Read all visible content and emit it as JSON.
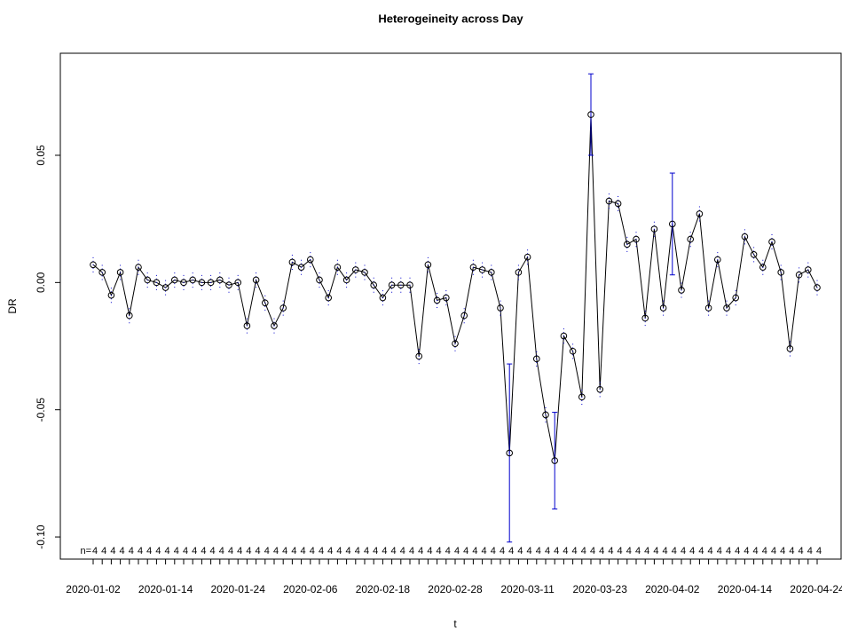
{
  "chart_data": {
    "type": "line",
    "title": "Heterogeineity across Day",
    "x_label": "t",
    "y_label": "DR",
    "categories": [
      "2020-01-02",
      null,
      null,
      null,
      null,
      null,
      null,
      null,
      "2020-01-14",
      null,
      null,
      null,
      null,
      null,
      null,
      null,
      "2020-01-24",
      null,
      null,
      null,
      null,
      null,
      null,
      null,
      "2020-02-06",
      null,
      null,
      null,
      null,
      null,
      null,
      null,
      "2020-02-18",
      null,
      null,
      null,
      null,
      null,
      null,
      null,
      "2020-02-28",
      null,
      null,
      null,
      null,
      null,
      null,
      null,
      "2020-03-11",
      null,
      null,
      null,
      null,
      null,
      null,
      null,
      "2020-03-23",
      null,
      null,
      null,
      null,
      null,
      null,
      null,
      "2020-04-02",
      null,
      null,
      null,
      null,
      null,
      null,
      null,
      "2020-04-14",
      null,
      null,
      null,
      null,
      null,
      null,
      null,
      "2020-04-24"
    ],
    "series": [
      {
        "name": "DR",
        "color": "#000000",
        "values": [
          0.007,
          0.004,
          -0.005,
          0.004,
          -0.013,
          0.006,
          0.001,
          0.0,
          -0.002,
          0.001,
          0.0,
          0.001,
          0.0,
          0.0,
          0.001,
          -0.001,
          0.0,
          -0.017,
          0.001,
          -0.008,
          -0.017,
          -0.01,
          0.008,
          0.006,
          0.009,
          0.001,
          -0.006,
          0.006,
          0.001,
          0.005,
          0.004,
          -0.001,
          -0.006,
          -0.001,
          -0.001,
          -0.001,
          -0.029,
          0.007,
          -0.007,
          -0.006,
          -0.024,
          -0.013,
          0.006,
          0.005,
          0.004,
          -0.01,
          -0.067,
          0.004,
          0.01,
          -0.03,
          -0.052,
          -0.07,
          -0.021,
          -0.027,
          -0.045,
          0.066,
          -0.042,
          0.032,
          0.031,
          0.015,
          0.017,
          -0.014,
          0.021,
          -0.01,
          0.023,
          -0.003,
          0.017,
          0.027,
          -0.01,
          0.009,
          -0.01,
          -0.006,
          0.018,
          0.011,
          0.006,
          0.016,
          0.004,
          -0.026,
          0.003,
          0.005,
          -0.002
        ],
        "errors": [
          0.003,
          0.003,
          0.003,
          0.003,
          0.003,
          0.003,
          0.003,
          0.003,
          0.003,
          0.003,
          0.003,
          0.003,
          0.003,
          0.003,
          0.003,
          0.003,
          0.003,
          0.003,
          0.003,
          0.003,
          0.003,
          0.003,
          0.003,
          0.003,
          0.003,
          0.003,
          0.003,
          0.003,
          0.003,
          0.003,
          0.003,
          0.003,
          0.003,
          0.003,
          0.003,
          0.003,
          0.003,
          0.003,
          0.003,
          0.003,
          0.003,
          0.003,
          0.003,
          0.003,
          0.003,
          0.003,
          0.035,
          0.003,
          0.003,
          0.003,
          0.003,
          0.019,
          0.003,
          0.003,
          0.003,
          0.016,
          0.003,
          0.003,
          0.003,
          0.003,
          0.003,
          0.003,
          0.003,
          0.003,
          0.02,
          0.003,
          0.003,
          0.003,
          0.003,
          0.003,
          0.003,
          0.003,
          0.003,
          0.003,
          0.003,
          0.003,
          0.003,
          0.003,
          0.003,
          0.003,
          0.003
        ],
        "error_color": "#0000cc"
      }
    ],
    "n_prefix": "n=",
    "counts": [
      4,
      4,
      4,
      4,
      4,
      4,
      4,
      4,
      4,
      4,
      4,
      4,
      4,
      4,
      4,
      4,
      4,
      4,
      4,
      4,
      4,
      4,
      4,
      4,
      4,
      4,
      4,
      4,
      4,
      4,
      4,
      4,
      4,
      4,
      4,
      4,
      4,
      4,
      4,
      4,
      4,
      4,
      4,
      4,
      4,
      4,
      4,
      4,
      4,
      4,
      4,
      4,
      4,
      4,
      4,
      4,
      4,
      4,
      4,
      4,
      4,
      4,
      4,
      4,
      4,
      4,
      4,
      4,
      4,
      4,
      4,
      4,
      4,
      4,
      4,
      4,
      4,
      4,
      4,
      4,
      4
    ],
    "ylim": [
      -0.1087,
      0.0901
    ],
    "yticks": [
      {
        "value": -0.1,
        "label": "-0.10"
      },
      {
        "value": -0.05,
        "label": "-0.05"
      },
      {
        "value": 0,
        "label": "0.00"
      },
      {
        "value": 0.05,
        "label": "0.05"
      }
    ],
    "grid": false
  }
}
